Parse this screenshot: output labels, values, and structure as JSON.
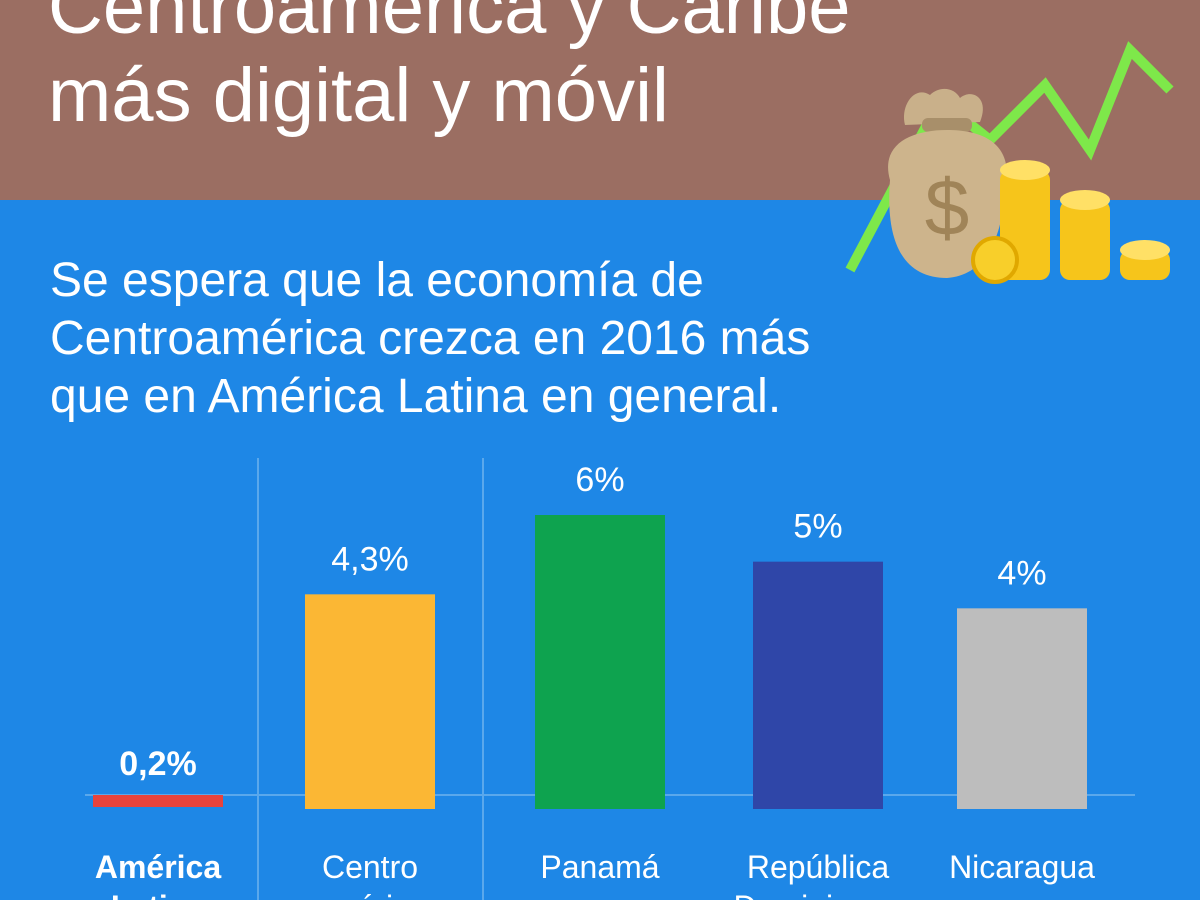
{
  "header": {
    "title_lines": [
      "Centroamérica y Caribe",
      "más digital y móvil"
    ],
    "background": "#9b6e62"
  },
  "subtitle_lines": [
    "Se espera que la economía de",
    "Centroamérica crezca en 2016 más",
    "que en América Latina en general."
  ],
  "illustration": {
    "icons": [
      "money-bag-icon",
      "coin-stack-icon",
      "trend-arrow-icon"
    ],
    "bag_symbol": "$"
  },
  "chart_data": {
    "type": "bar",
    "title": "",
    "xlabel": "",
    "ylabel": "",
    "ylim": [
      0,
      6
    ],
    "grid": false,
    "legend": "none",
    "categories": [
      [
        "América",
        "Latina"
      ],
      [
        "Centro",
        "américa"
      ],
      [
        "Panamá"
      ],
      [
        "República",
        "Dominicana"
      ],
      [
        "Nicaragua"
      ]
    ],
    "values": [
      0.2,
      4.3,
      6,
      5,
      4
    ],
    "value_labels": [
      "0,2%",
      "4,3%",
      "6%",
      "5%",
      "4%"
    ],
    "colors": [
      "#e8433c",
      "#fbb734",
      "#0ea34f",
      "#2f46a8",
      "#bdbdbd"
    ],
    "highlight_first": true
  }
}
